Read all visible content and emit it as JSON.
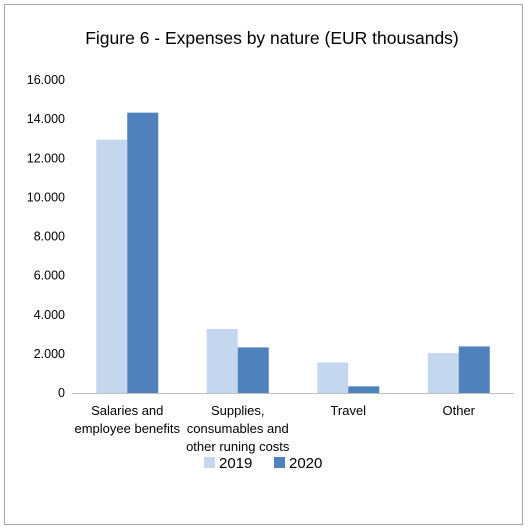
{
  "chart_data": {
    "type": "bar",
    "title": "Figure 6 - Expenses by nature (EUR thousands)",
    "categories": [
      [
        "Salaries and",
        "employee benefits"
      ],
      [
        "Supplies,",
        "consumables and",
        "other runing costs"
      ],
      [
        "Travel"
      ],
      [
        "Other"
      ]
    ],
    "series": [
      {
        "name": "2019",
        "color": "#c5d7ef",
        "values": [
          12950,
          3270,
          1560,
          2040
        ]
      },
      {
        "name": "2020",
        "color": "#4f81bd",
        "values": [
          14330,
          2330,
          340,
          2380
        ]
      }
    ],
    "ylim": [
      0,
      16000
    ],
    "yticks": [
      0,
      2000,
      4000,
      6000,
      8000,
      10000,
      12000,
      14000,
      16000
    ],
    "ytick_labels": [
      "0",
      "2.000",
      "4.000",
      "6.000",
      "8.000",
      "10.000",
      "12.000",
      "14.000",
      "16.000"
    ],
    "grid": false,
    "legend_position": "bottom"
  }
}
